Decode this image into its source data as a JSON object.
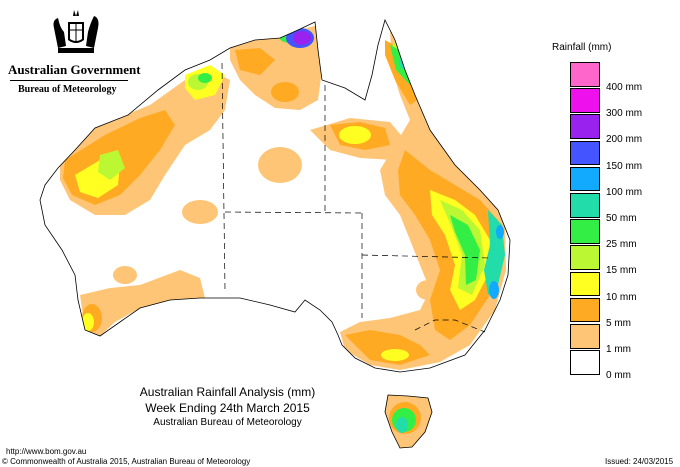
{
  "branding": {
    "government": "Australian Government",
    "agency": "Bureau of Meteorology",
    "crest_icon": "coat-of-arms-icon"
  },
  "map": {
    "title": "Australian Rainfall Analysis (mm)",
    "period": "Week Ending 24th March 2015",
    "source": "Australian Bureau of Meteorology"
  },
  "legend": {
    "title": "Rainfall (mm)",
    "items": [
      {
        "label": "400 mm",
        "color": "#ff66cc"
      },
      {
        "label": "300 mm",
        "color": "#ee11ee"
      },
      {
        "label": "200 mm",
        "color": "#9922ee"
      },
      {
        "label": "150 mm",
        "color": "#4455ff"
      },
      {
        "label": "100 mm",
        "color": "#11aaff"
      },
      {
        "label": "50 mm",
        "color": "#22ddaa"
      },
      {
        "label": "25 mm",
        "color": "#33ee44"
      },
      {
        "label": "15 mm",
        "color": "#bbf733"
      },
      {
        "label": "10 mm",
        "color": "#ffff22"
      },
      {
        "label": "5 mm",
        "color": "#ffaa22"
      },
      {
        "label": "1 mm",
        "color": "#ffc576"
      },
      {
        "label": "0 mm",
        "color": "#ffffff"
      }
    ]
  },
  "footer": {
    "url": "http://www.bom.gov.au",
    "copyright": "© Commonwealth of Australia 2015, Australian Bureau of Meteorology",
    "issued": "Issued: 24/03/2015"
  }
}
